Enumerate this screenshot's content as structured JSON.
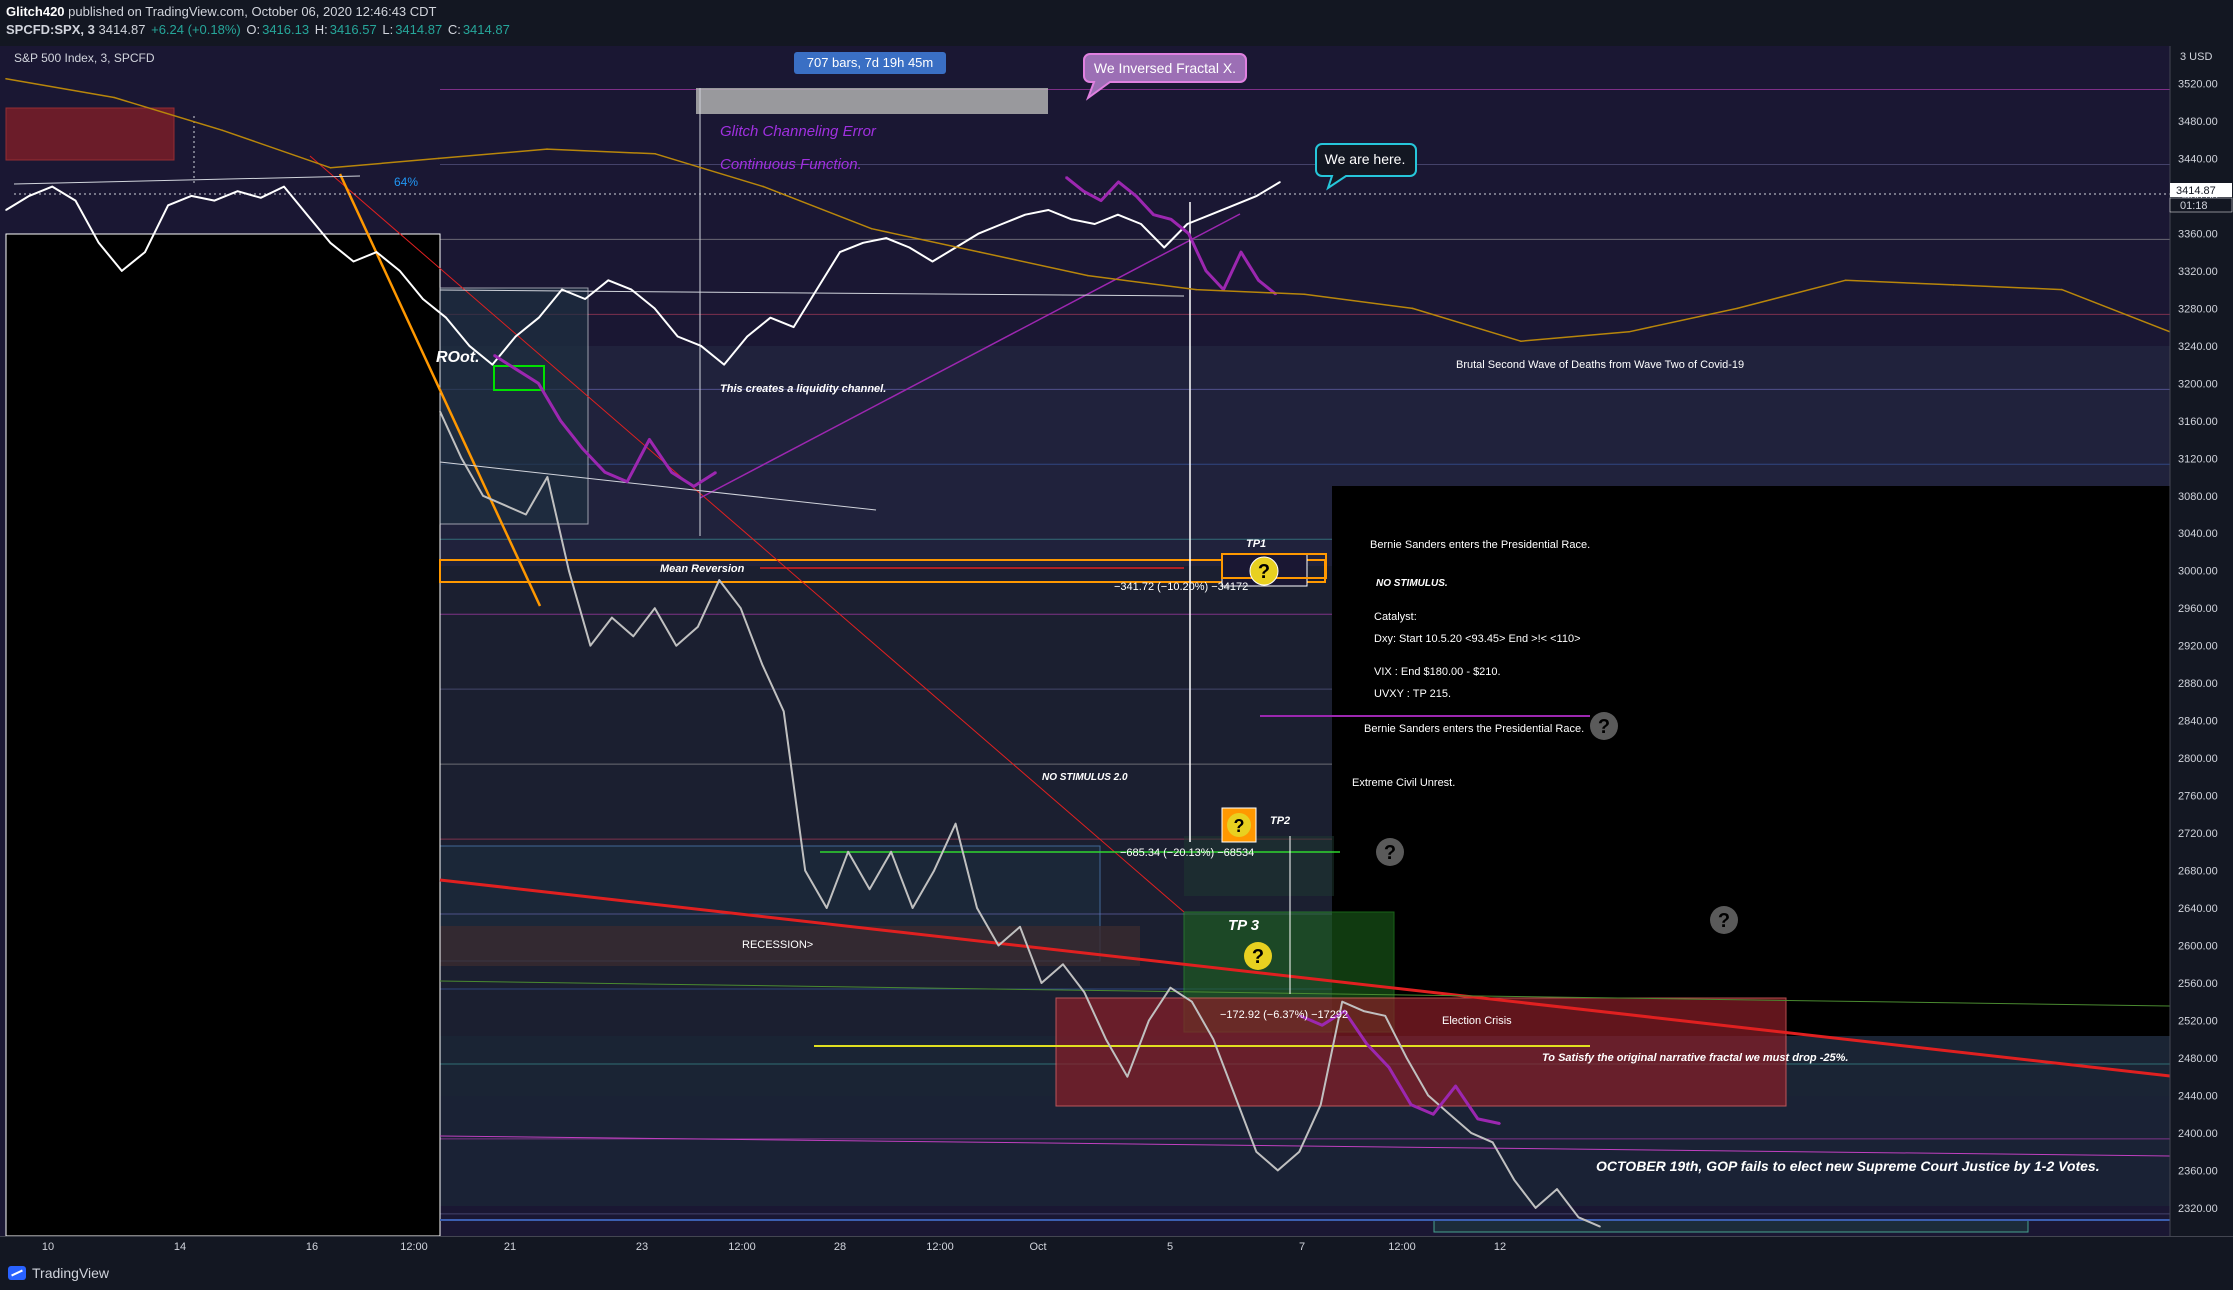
{
  "header": {
    "publisher": "Glitch420",
    "published_text": "published on TradingView.com, October 06, 2020 12:46:43 CDT",
    "symbol": "SPCFD:SPX, 3",
    "price": "3414.87",
    "change": "+6.24 (+0.18%)",
    "open_label": "O:",
    "open": "3416.13",
    "high_label": "H:",
    "high": "3416.57",
    "low_label": "L:",
    "low": "3414.87",
    "close_label": "C:",
    "close": "3414.87"
  },
  "chart_title": "S&P 500 Index, 3, SPCFD",
  "price_axis": {
    "currency": "3 USD",
    "last_price": "3414.87",
    "countdown": "01:18"
  },
  "annotations": {
    "bars_label": "707 bars, 7d 19h 45m",
    "inversed_callout": "We Inversed Fractal X.",
    "here_callout": "We are here.",
    "glitch_error": "Glitch Channeling Error",
    "continuous": "Continuous Function.",
    "liquidity": "This creates a liquidity channel.",
    "root": "ROot.",
    "mean_reversion": "Mean Reversion",
    "tp1": "TP1",
    "tp1_measure": "−341.72 (−10.20%) −34172",
    "tp2": "TP2",
    "tp2_measure": "−685.34 (−20.13%) −68534",
    "tp3": "TP 3",
    "tp3_measure": "−172.92 (−6.37%) −17292",
    "no_stimulus_2": "NO STIMULUS 2.0",
    "recession": "RECESSION>",
    "brutal_wave": "Brutal Second Wave of Deaths from Wave Two of Covid-19",
    "bernie1": "Bernie Sanders enters the Presidential Race.",
    "no_stimulus": "NO STIMULUS.",
    "catalyst": "Catalyst:",
    "dxy": "Dxy: Start 10.5.20 <93.45> End >!< <110>",
    "vix": "VIX : End $180.00 - $210.",
    "uvxy": "UVXY : TP 215.",
    "bernie2": "Bernie Sanders enters the Presidential Race.",
    "civil_unrest": "Extreme Civil Unrest.",
    "election_crisis": "Election Crisis",
    "satisfy": "To Satisfy the original narrative fractal we must drop -25%.",
    "october19": "OCTOBER 19th, GOP fails to elect new Supreme Court Justice by 1-2 Votes.",
    "pct_label": "64%",
    "question": "?"
  },
  "footer": {
    "brand": "TradingView"
  },
  "chart_data": {
    "type": "line",
    "title": "S&P 500 Index, 3, SPCFD",
    "ylabel": "USD",
    "ylim": [
      2290,
      3560
    ],
    "y_ticks": [
      3520,
      3480,
      3440,
      3400,
      3360,
      3320,
      3280,
      3240,
      3200,
      3160,
      3120,
      3080,
      3040,
      3000,
      2960,
      2920,
      2880,
      2840,
      2800,
      2760,
      2720,
      2680,
      2640,
      2600,
      2560,
      2520,
      2480,
      2440,
      2400,
      2360,
      2320
    ],
    "x_ticks": [
      "10",
      "14",
      "16",
      "12:00",
      "21",
      "23",
      "12:00",
      "28",
      "12:00",
      "Oct",
      "5",
      "7",
      "12:00",
      "12"
    ],
    "series": [
      {
        "name": "",
        "color": "#ffffff",
        "values": [
          3385,
          3400,
          3410,
          3395,
          3350,
          3320,
          3340,
          3390,
          3400,
          3395,
          3405,
          3398,
          3410,
          3380,
          3350,
          3330,
          3340,
          3320,
          3290,
          3270,
          3240,
          3220,
          3250,
          3270,
          3300,
          3290,
          3310,
          3300,
          3280,
          3250,
          3240,
          3220,
          3250,
          3270,
          3260,
          3300,
          3340,
          3350,
          3355,
          3345,
          3330,
          3345,
          3360,
          3370,
          3380,
          3385,
          3375,
          3370,
          3380,
          3370,
          3345,
          3370,
          3380,
          3390,
          3400,
          3414.87
        ]
      },
      {
        "name": "",
        "color": "#9c27b0",
        "values": [
          3230,
          3215,
          3200,
          3160,
          3130,
          3105,
          3095,
          3140,
          3105,
          3090,
          3105
        ]
      },
      {
        "name": "",
        "color": "#9c27b0",
        "values": [
          3420,
          3405,
          3395,
          3415,
          3400,
          3380,
          3375,
          3360,
          3320,
          3300,
          3340,
          3310,
          3295
        ]
      },
      {
        "name": "",
        "color": "#c0c0c0",
        "values": [
          3170,
          3120,
          3080,
          3070,
          3060,
          3100,
          3000,
          2920,
          2950,
          2930,
          2960,
          2920,
          2940,
          2990,
          2960,
          2900,
          2850,
          2680,
          2640,
          2700,
          2660,
          2700,
          2640,
          2680,
          2730,
          2640,
          2600,
          2620,
          2560,
          2580,
          2550,
          2500,
          2460,
          2520,
          2555,
          2540,
          2500,
          2440,
          2380,
          2360,
          2380,
          2430,
          2540,
          2530,
          2525,
          2480,
          2440,
          2420,
          2400,
          2390,
          2350,
          2320,
          2340,
          2310,
          2300
        ]
      },
      {
        "name": "",
        "color": "#9c27b0",
        "values": [
          2525,
          2515,
          2530,
          2495,
          2470,
          2430,
          2420,
          2450,
          2415,
          2410
        ]
      },
      {
        "name": "",
        "color": "#b8860b",
        "values": [
          3525,
          3505,
          3470,
          3430,
          3440,
          3450,
          3445,
          3410,
          3365,
          3340,
          3315,
          3300,
          3295,
          3280,
          3245,
          3255,
          3280,
          3310,
          3305,
          3300,
          3255
        ]
      }
    ],
    "zones": [
      {
        "label": "Mean Reversion",
        "from": 2995,
        "to": 3015
      },
      {
        "label": "TP1",
        "from": 2995,
        "to": 3020
      },
      {
        "label": "TP2",
        "from": 2710,
        "to": 2740
      },
      {
        "label": "TP 3",
        "from": 2495,
        "to": 2630
      },
      {
        "label": "Election Crisis",
        "from": 2420,
        "to": 2540
      }
    ]
  }
}
